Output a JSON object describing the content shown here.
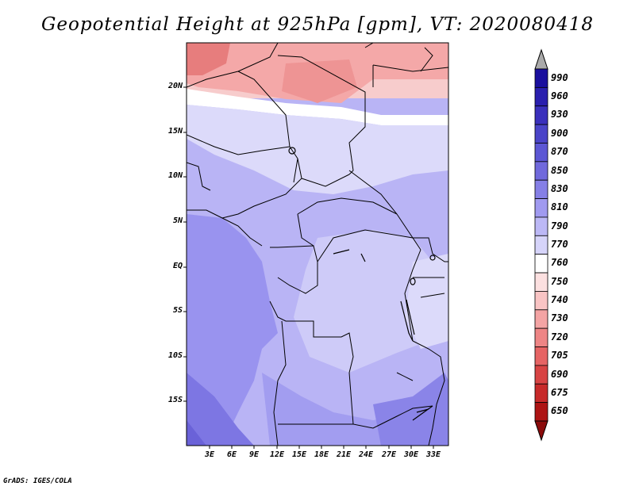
{
  "title": "Geopotential Height at 925hPa [gpm], VT: 2020080418",
  "credit": "GrADS: IGES/COLA",
  "map": {
    "lat_labels": [
      "20N",
      "15N",
      "10N",
      "5N",
      "EQ",
      "5S",
      "10S",
      "15S"
    ],
    "lon_labels": [
      "3E",
      "6E",
      "9E",
      "12E",
      "15E",
      "18E",
      "21E",
      "24E",
      "27E",
      "30E",
      "33E"
    ]
  },
  "colorbar": {
    "levels": [
      "990",
      "960",
      "930",
      "900",
      "870",
      "850",
      "830",
      "810",
      "790",
      "770",
      "760",
      "750",
      "740",
      "730",
      "720",
      "705",
      "690",
      "675",
      "650"
    ],
    "colors": [
      "#1a0f9e",
      "#2a1fae",
      "#3a30bc",
      "#4a44c8",
      "#5c57d4",
      "#7069dc",
      "#857fe6",
      "#a09af0",
      "#bcb8f6",
      "#d6d4fa",
      "#ffffff",
      "#fce0e0",
      "#f9c4c4",
      "#f4a4a4",
      "#ee8585",
      "#e66464",
      "#d84444",
      "#c72a2a",
      "#ad1414"
    ],
    "top_arrow_color": "#aaaaaa",
    "bottom_arrow_color": "#8b0b0b"
  }
}
